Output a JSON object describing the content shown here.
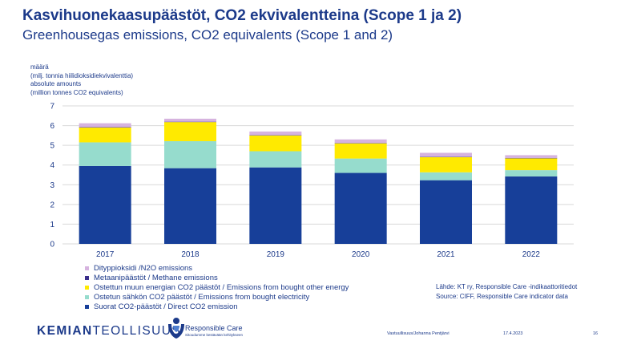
{
  "header": {
    "title_fi": "Kasvihuonekaasupäästöt, CO2 ekvivalentteina (Scope 1 ja 2)",
    "title_en": "Greenhousegas emissions, CO2 equivalents (Scope 1 and 2)"
  },
  "chart_data": {
    "type": "bar",
    "stacked": true,
    "ylabel_lines": [
      "määrä",
      "(milj. tonnia hiilidioksidiekvivalenttia)",
      "absolute amounts",
      "(million tonnes CO2 equivalents)"
    ],
    "ylim": [
      0,
      7
    ],
    "yticks": [
      0,
      1,
      2,
      3,
      4,
      5,
      6,
      7
    ],
    "grid": true,
    "categories": [
      "2017",
      "2018",
      "2019",
      "2020",
      "2021",
      "2022"
    ],
    "series": [
      {
        "name": "Suorat CO2-päästöt / Direct CO2 emission",
        "color": "#173f99",
        "values": [
          3.95,
          3.84,
          3.88,
          3.6,
          3.23,
          3.42
        ]
      },
      {
        "name": "Ostetun sähkön CO2 päästöt / Emissions from bought electricity",
        "color": "#96dccd",
        "values": [
          1.2,
          1.37,
          0.82,
          0.73,
          0.4,
          0.32
        ]
      },
      {
        "name": "Ostettun muun energian CO2 päästöt / Emissions from bought other energy",
        "color": "#ffea00",
        "values": [
          0.75,
          0.97,
          0.8,
          0.77,
          0.77,
          0.6
        ]
      },
      {
        "name": "Metaanipäästöt / Methane emissions",
        "color": "#3b2f8c",
        "values": [
          0.02,
          0.02,
          0.02,
          0.02,
          0.02,
          0.02
        ]
      },
      {
        "name": "Dityppioksidi /N2O emissions",
        "color": "#d6b3df",
        "values": [
          0.2,
          0.15,
          0.18,
          0.18,
          0.2,
          0.14
        ]
      }
    ]
  },
  "legend": {
    "items": [
      {
        "label": "Dityppioksidi /N2O emissions",
        "color": "#d6b3df"
      },
      {
        "label": "Metaanipäästöt / Methane emissions",
        "color": "#3b2f8c"
      },
      {
        "label": "Ostettun muun energian CO2 päästöt / Emissions from bought other energy",
        "color": "#ffea00"
      },
      {
        "label": "Ostetun sähkön CO2 päästöt / Emissions from bought electricity",
        "color": "#96dccd"
      },
      {
        "label": "Suorat CO2-päästöt / Direct CO2 emission",
        "color": "#173f99"
      }
    ]
  },
  "source": {
    "line_fi": "Lähde: KT ry, Responsible Care -indikaattoritiedot",
    "line_en": "Source: CIFF, Responsible Care indicator data"
  },
  "footer": {
    "brand_bold": "KEMIAN",
    "brand_regular": "TEOLLISUUS",
    "rc_name": "Responsible Care",
    "rc_slogan": "Sitoudumme kestävään kehitykseen",
    "author": "Vastuullisuus/Johanna Pentjärvi",
    "date": "17.4.2023",
    "page": "16"
  }
}
